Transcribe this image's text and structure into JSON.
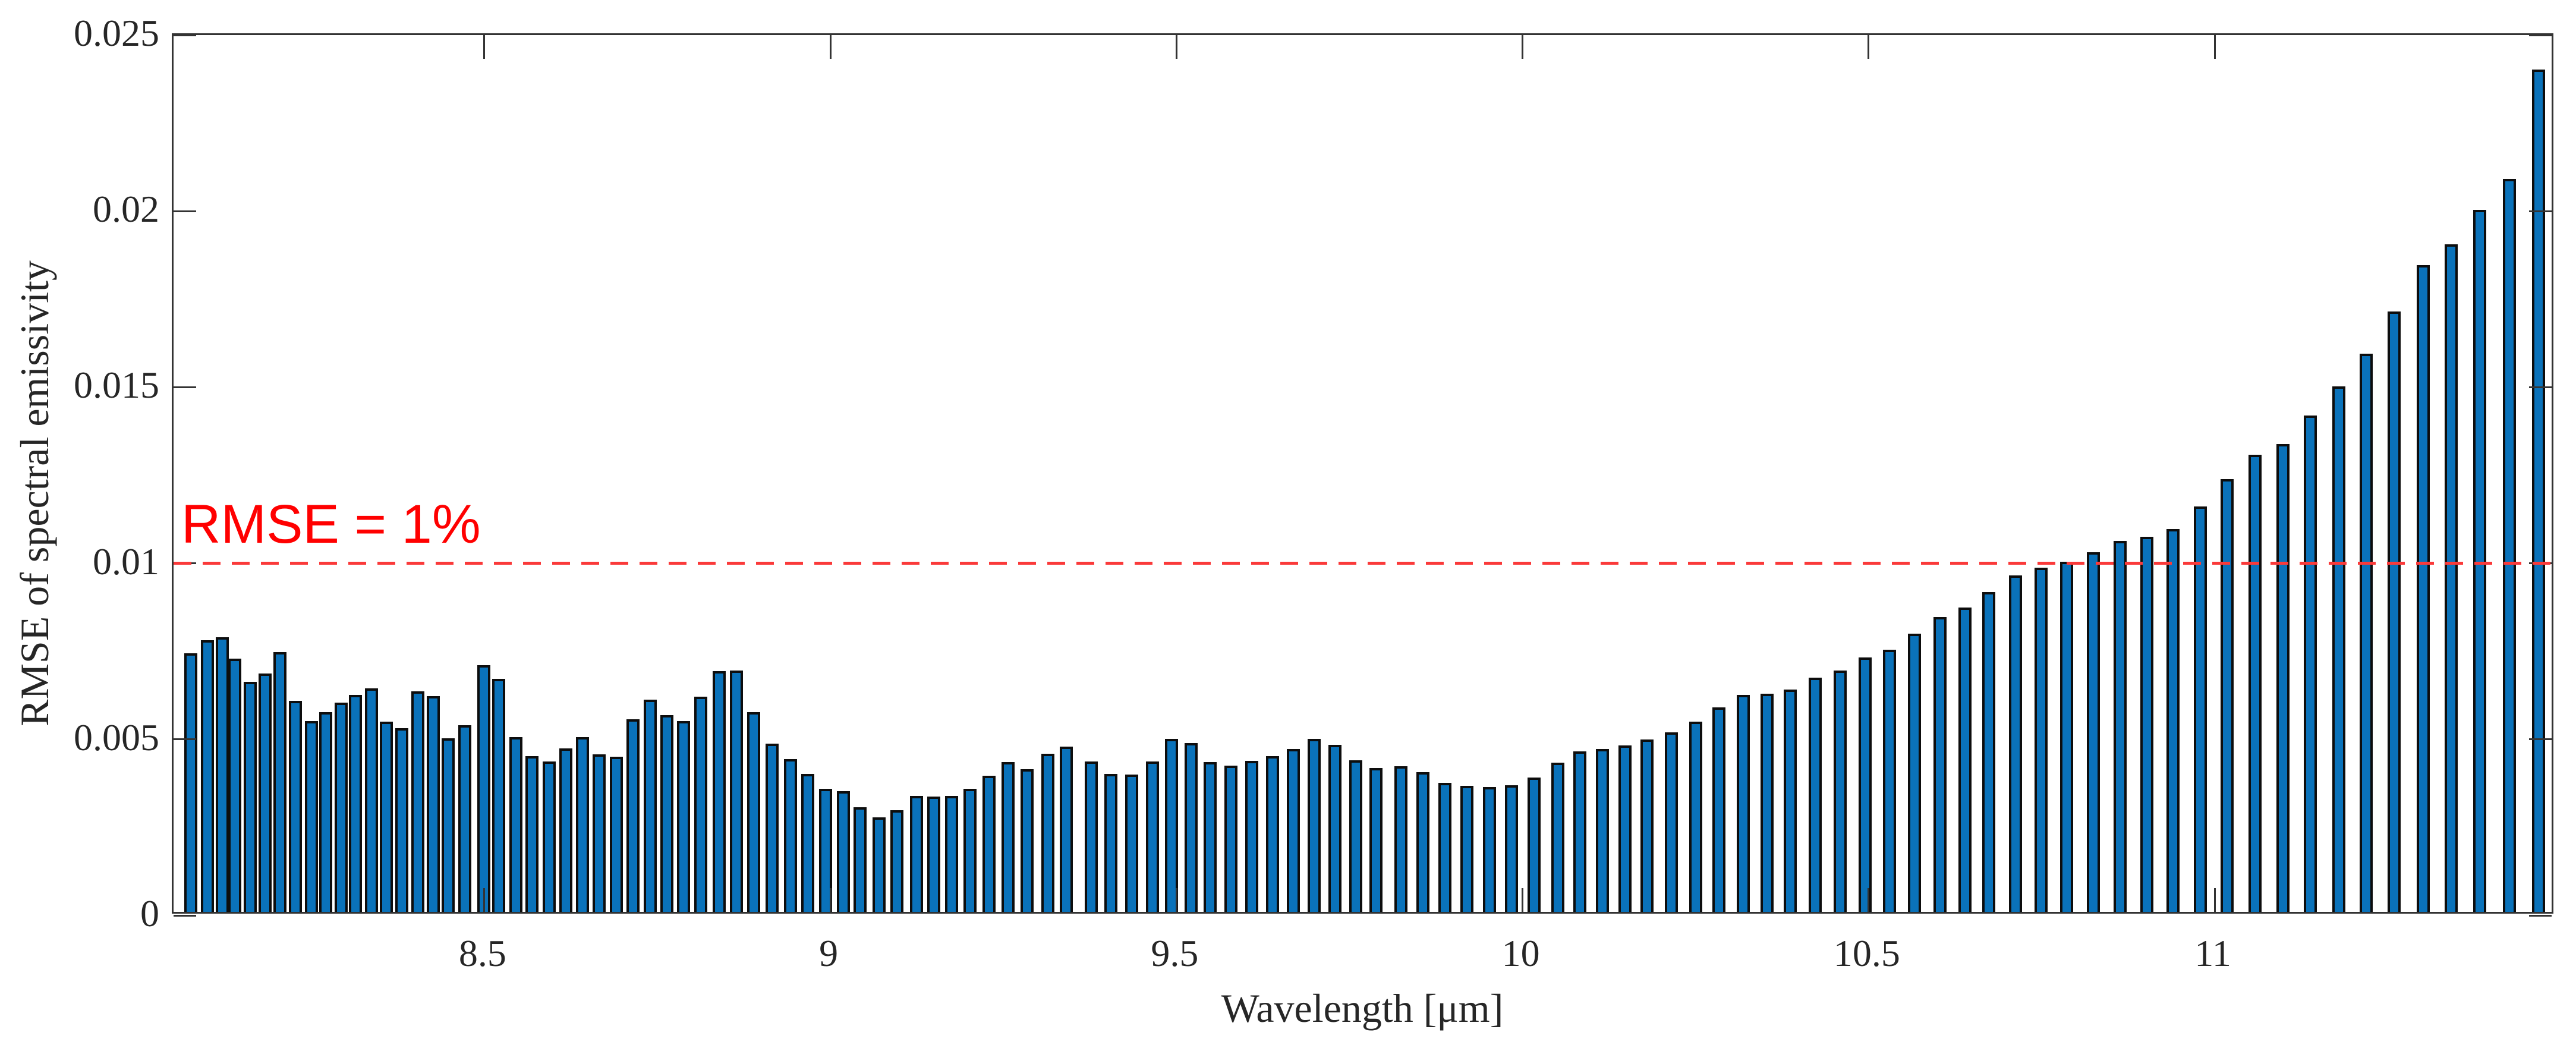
{
  "chart_data": {
    "type": "bar",
    "title": "",
    "xlabel": "Wavelength [μm]",
    "ylabel": "RMSE of spectral emissivity",
    "xlim": [
      8.051,
      11.492
    ],
    "ylim": [
      0,
      0.025
    ],
    "x_ticks": [
      8.5,
      9,
      9.5,
      10,
      10.5,
      11
    ],
    "y_ticks": [
      0,
      0.005,
      0.01,
      0.015,
      0.02,
      0.025
    ],
    "y_tick_labels": [
      "0",
      "0.005",
      "0.01",
      "0.015",
      "0.02",
      "0.025"
    ],
    "grid": false,
    "legend": "none",
    "bar_color": "#0a72ba",
    "bar_edge_color": "#0d0d0d",
    "axis_color": "#333333",
    "reference_line": {
      "y_value": 0.01,
      "color": "#fa3a3a",
      "style": "dashed"
    },
    "annotation": {
      "text": "RMSE = 1%",
      "color": "#ff0000",
      "y_value": 0.01
    },
    "x": [
      8.076,
      8.1,
      8.121,
      8.139,
      8.162,
      8.183,
      8.205,
      8.227,
      8.25,
      8.271,
      8.293,
      8.314,
      8.337,
      8.358,
      8.381,
      8.404,
      8.426,
      8.448,
      8.472,
      8.499,
      8.521,
      8.546,
      8.569,
      8.594,
      8.618,
      8.642,
      8.666,
      8.691,
      8.715,
      8.74,
      8.764,
      8.788,
      8.813,
      8.839,
      8.864,
      8.889,
      8.916,
      8.942,
      8.967,
      8.993,
      9.019,
      9.043,
      9.07,
      9.096,
      9.124,
      9.149,
      9.175,
      9.202,
      9.229,
      9.257,
      9.284,
      9.314,
      9.341,
      9.377,
      9.405,
      9.435,
      9.465,
      9.493,
      9.521,
      9.549,
      9.579,
      9.609,
      9.639,
      9.669,
      9.699,
      9.729,
      9.759,
      9.788,
      9.824,
      9.856,
      9.888,
      9.92,
      9.952,
      9.984,
      10.017,
      10.051,
      10.083,
      10.115,
      10.148,
      10.18,
      10.215,
      10.25,
      10.284,
      10.319,
      10.353,
      10.387,
      10.423,
      10.459,
      10.495,
      10.53,
      10.566,
      10.603,
      10.639,
      10.674,
      10.712,
      10.749,
      10.786,
      10.825,
      10.863,
      10.902,
      10.94,
      10.979,
      11.018,
      11.058,
      11.099,
      11.138,
      11.179,
      11.219,
      11.259,
      11.301,
      11.342,
      11.383,
      11.426,
      11.468
    ],
    "values": [
      0.00735,
      0.00771,
      0.0078,
      0.0072,
      0.00654,
      0.00677,
      0.00737,
      0.00599,
      0.00542,
      0.00568,
      0.00595,
      0.00617,
      0.00635,
      0.0054,
      0.00521,
      0.00627,
      0.00613,
      0.00493,
      0.0053,
      0.007,
      0.00661,
      0.00496,
      0.00442,
      0.00428,
      0.00465,
      0.00496,
      0.00448,
      0.0044,
      0.00547,
      0.00603,
      0.00559,
      0.00542,
      0.00611,
      0.00683,
      0.00686,
      0.00567,
      0.00477,
      0.00434,
      0.00392,
      0.00349,
      0.00343,
      0.00297,
      0.00268,
      0.00288,
      0.0033,
      0.00328,
      0.00329,
      0.00349,
      0.00386,
      0.00426,
      0.00405,
      0.00449,
      0.0047,
      0.00428,
      0.00392,
      0.0039,
      0.00428,
      0.00492,
      0.00479,
      0.00425,
      0.00416,
      0.00429,
      0.00442,
      0.00462,
      0.00491,
      0.00474,
      0.00431,
      0.00408,
      0.00414,
      0.00397,
      0.00367,
      0.00358,
      0.00355,
      0.0036,
      0.00382,
      0.00424,
      0.00456,
      0.00462,
      0.00472,
      0.0049,
      0.0051,
      0.00541,
      0.00581,
      0.00617,
      0.0062,
      0.00632,
      0.00666,
      0.00686,
      0.00722,
      0.00745,
      0.0079,
      0.00838,
      0.00865,
      0.00909,
      0.00956,
      0.00978,
      0.00994,
      0.01022,
      0.01053,
      0.01066,
      0.01087,
      0.01151,
      0.01229,
      0.01298,
      0.01328,
      0.01409,
      0.01493,
      0.01586,
      0.01705,
      0.01836,
      0.01896,
      0.01994,
      0.02081,
      0.02392
    ]
  }
}
